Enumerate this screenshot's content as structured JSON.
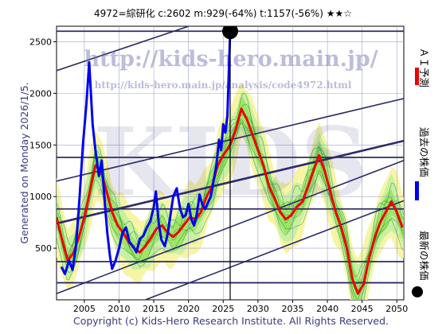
{
  "chart_data": {
    "type": "line",
    "title": "4972=綜研化    c:2602  m:929(-64%)  t:1157(-56%)  ★★☆",
    "side_label": "Generated on Monday 2026/1/5.",
    "footer": "Copyright (c) Kids-Hero Research Institute. All Rights Reserved.",
    "watermarks": {
      "url": "http://kids-hero.main.jp/",
      "url_path": "http://kids-hero.main.jp/analysis/code4972.html",
      "brand": "KIDS"
    },
    "xlim": [
      2001,
      2051
    ],
    "ylim": [
      0,
      2650
    ],
    "x_ticks": [
      2005,
      2010,
      2015,
      2020,
      2025,
      2030,
      2035,
      2040,
      2045,
      2050
    ],
    "y_ticks": [
      500,
      1000,
      1500,
      2000,
      2500
    ],
    "grid": true,
    "current": {
      "year": 2026.0,
      "value": 2602
    },
    "horizontal_levels": [
      2602,
      1380,
      880,
      370,
      165
    ],
    "trend_lines": [
      {
        "x": [
          2001,
          2051
        ],
        "y": [
          2220,
          3350
        ],
        "bold": false
      },
      {
        "x": [
          2001,
          2051
        ],
        "y": [
          1150,
          1950
        ],
        "bold": false
      },
      {
        "x": [
          2001,
          2051
        ],
        "y": [
          740,
          1540
        ],
        "bold": true
      },
      {
        "x": [
          2001,
          2051
        ],
        "y": [
          60,
          1350
        ],
        "bold": false
      },
      {
        "x": [
          2001,
          2051
        ],
        "y": [
          -330,
          960
        ],
        "bold": false
      }
    ],
    "series": [
      {
        "name": "過去の株価",
        "color": "#0000ee",
        "x": [
          2001.7,
          2002.2,
          2002.8,
          2003.3,
          2003.8,
          2004.3,
          2004.8,
          2005.3,
          2005.7,
          2006.2,
          2006.6,
          2007.1,
          2007.5,
          2008.0,
          2008.3,
          2008.7,
          2009.0,
          2009.5,
          2010.0,
          2010.5,
          2011.0,
          2011.5,
          2012.0,
          2012.5,
          2013.0,
          2013.5,
          2014.0,
          2014.5,
          2015.0,
          2015.3,
          2015.7,
          2016.1,
          2016.6,
          2017.0,
          2017.4,
          2017.8,
          2018.3,
          2018.8,
          2019.2,
          2019.6,
          2020.0,
          2020.4,
          2020.8,
          2021.2,
          2021.6,
          2022.0,
          2022.4,
          2022.8,
          2023.2,
          2023.6,
          2024.0,
          2024.4,
          2024.7,
          2025.0,
          2025.3,
          2025.6,
          2026.0
        ],
        "y": [
          320,
          250,
          380,
          290,
          520,
          980,
          1500,
          1900,
          2300,
          1700,
          1450,
          1200,
          1350,
          900,
          650,
          420,
          300,
          380,
          500,
          650,
          700,
          560,
          520,
          460,
          590,
          620,
          700,
          760,
          900,
          1050,
          750,
          580,
          520,
          640,
          820,
          1000,
          1080,
          880,
          800,
          820,
          930,
          780,
          720,
          830,
          1020,
          920,
          880,
          940,
          1000,
          1150,
          1300,
          1550,
          1450,
          1700,
          1620,
          1780,
          2602
        ]
      },
      {
        "name": "ＡＩ予測",
        "color": "#ee0000",
        "x": [
          2001.0,
          2001.8,
          2002.6,
          2003.4,
          2004.2,
          2005.0,
          2005.8,
          2006.6,
          2007.4,
          2008.2,
          2009.0,
          2009.8,
          2010.6,
          2011.4,
          2012.2,
          2013.0,
          2013.8,
          2014.6,
          2015.4,
          2016.2,
          2017.0,
          2017.8,
          2018.6,
          2019.4,
          2020.2,
          2021.0,
          2021.8,
          2022.6,
          2023.4,
          2024.2,
          2025.0,
          2026.0,
          2026.8,
          2027.6,
          2028.4,
          2029.2,
          2030.0,
          2030.8,
          2031.6,
          2032.4,
          2033.2,
          2034.0,
          2034.8,
          2035.6,
          2036.4,
          2037.2,
          2038.0,
          2038.8,
          2039.6,
          2040.4,
          2041.2,
          2042.0,
          2042.8,
          2043.6,
          2044.4,
          2045.2,
          2046.0,
          2046.8,
          2047.6,
          2048.4,
          2049.2,
          2050.0,
          2050.8
        ],
        "y": [
          800,
          580,
          380,
          450,
          600,
          800,
          1050,
          1300,
          1250,
          1050,
          850,
          720,
          650,
          560,
          500,
          460,
          520,
          600,
          690,
          720,
          650,
          610,
          660,
          730,
          800,
          780,
          850,
          1000,
          1100,
          1300,
          1400,
          1500,
          1650,
          1850,
          1750,
          1600,
          1450,
          1300,
          1100,
          980,
          850,
          780,
          820,
          900,
          950,
          1100,
          1250,
          1400,
          1250,
          1050,
          850,
          700,
          500,
          200,
          60,
          150,
          400,
          600,
          750,
          850,
          950,
          850,
          700
        ]
      }
    ],
    "legend": [
      {
        "label": "ＡＩ予測",
        "color": "#ee0000",
        "marker": "line"
      },
      {
        "label": "過去の株価",
        "color": "#0000ee",
        "marker": "line"
      },
      {
        "label": "最新の株価",
        "color": "#000000",
        "marker": "dot"
      }
    ],
    "colors": {
      "band_green": "#7cdf3a",
      "band_green_light": "#c8f0a0",
      "band_yellow": "#f8f4a6",
      "level_line": "#2b2b66",
      "trend_line": "#2b2b66",
      "grid": "#9ea5c6"
    }
  }
}
